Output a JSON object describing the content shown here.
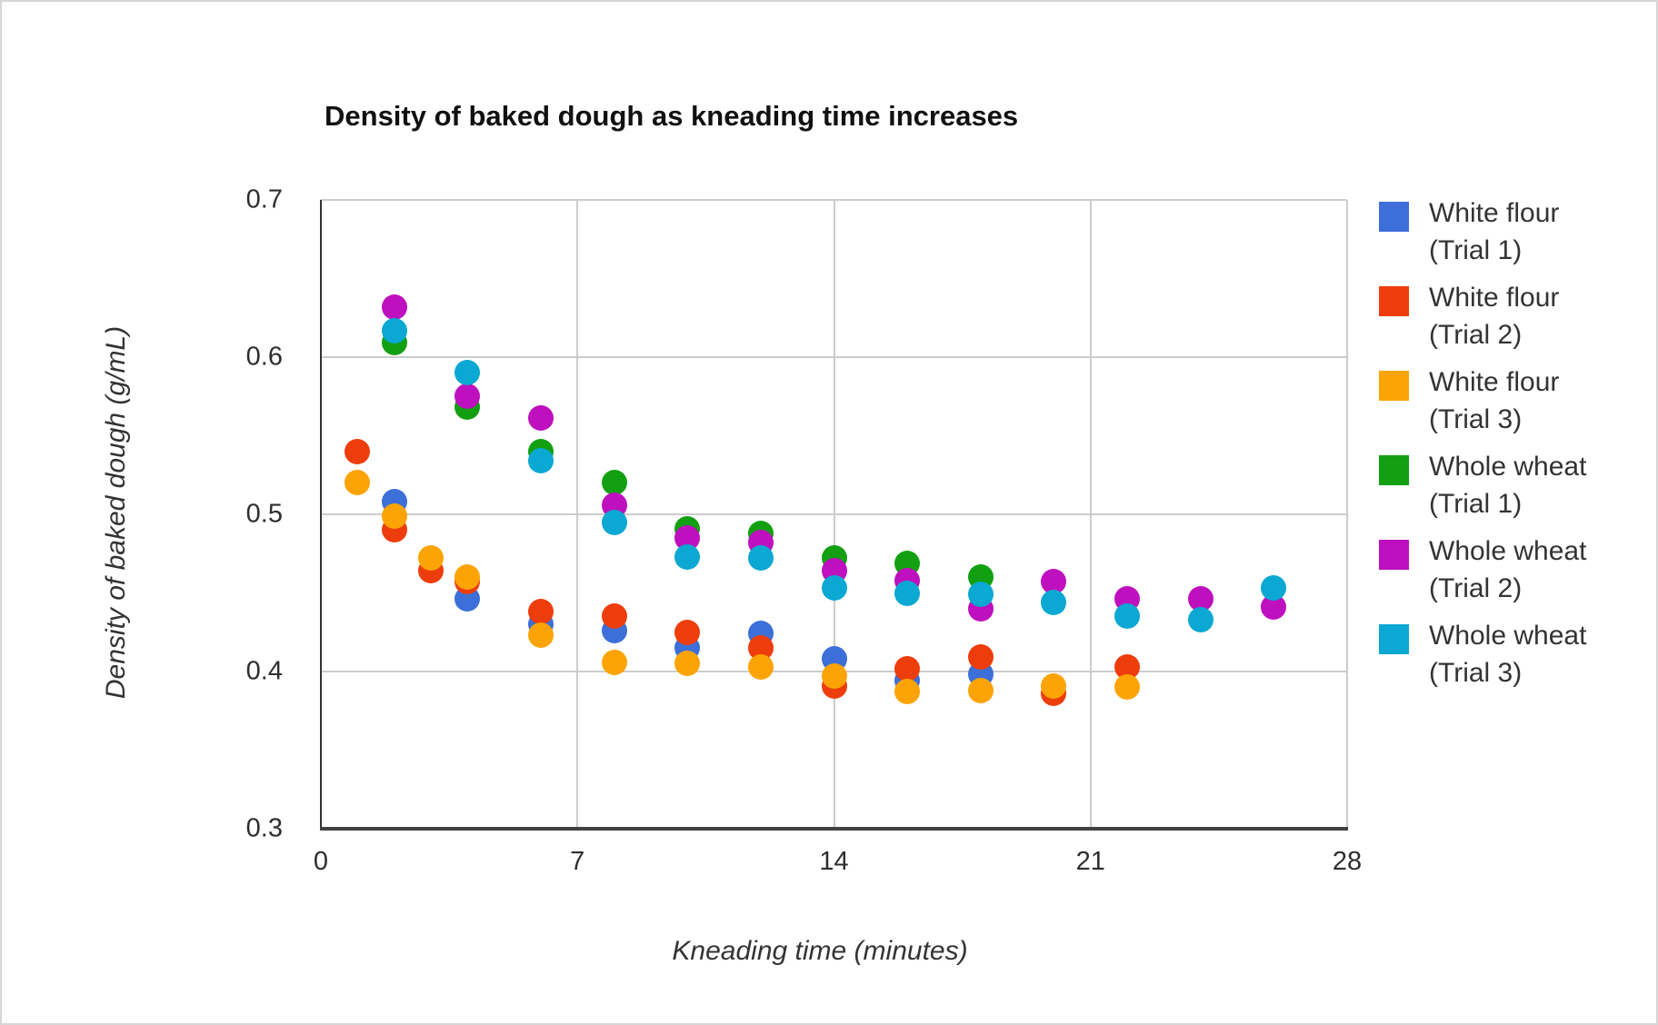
{
  "chart_data": {
    "type": "scatter",
    "title": "Density of baked dough as kneading time increases",
    "xlabel": "Kneading time (minutes)",
    "ylabel": "Density of baked dough (g/mL)",
    "xlim": [
      0,
      28
    ],
    "ylim": [
      0.3,
      0.7
    ],
    "x_ticks": [
      0,
      7,
      14,
      21,
      28
    ],
    "y_ticks": [
      0.3,
      0.4,
      0.5,
      0.6,
      0.7
    ],
    "grid": true,
    "legend_position": "right",
    "series": [
      {
        "name": "White flour (Trial 1)",
        "label_lines": [
          "White flour",
          "(Trial 1)"
        ],
        "color": "#3C6FD8",
        "points": [
          [
            2,
            0.508
          ],
          [
            4,
            0.446
          ],
          [
            6,
            0.43
          ],
          [
            8,
            0.426
          ],
          [
            10,
            0.415
          ],
          [
            12,
            0.424
          ],
          [
            14,
            0.408
          ],
          [
            16,
            0.394
          ],
          [
            18,
            0.398
          ]
        ]
      },
      {
        "name": "White flour (Trial 2)",
        "label_lines": [
          "White flour",
          "(Trial 2)"
        ],
        "color": "#EE3D0C",
        "points": [
          [
            1,
            0.54
          ],
          [
            2,
            0.49
          ],
          [
            3,
            0.464
          ],
          [
            4,
            0.457
          ],
          [
            6,
            0.438
          ],
          [
            8,
            0.435
          ],
          [
            10,
            0.425
          ],
          [
            12,
            0.415
          ],
          [
            14,
            0.391
          ],
          [
            16,
            0.402
          ],
          [
            18,
            0.409
          ],
          [
            20,
            0.386
          ],
          [
            22,
            0.403
          ]
        ]
      },
      {
        "name": "White flour (Trial 3)",
        "label_lines": [
          "White flour",
          "(Trial 3)"
        ],
        "color": "#FCA405",
        "points": [
          [
            1,
            0.52
          ],
          [
            2,
            0.499
          ],
          [
            3,
            0.472
          ],
          [
            4,
            0.46
          ],
          [
            6,
            0.423
          ],
          [
            8,
            0.406
          ],
          [
            10,
            0.405
          ],
          [
            12,
            0.403
          ],
          [
            14,
            0.397
          ],
          [
            16,
            0.387
          ],
          [
            18,
            0.388
          ],
          [
            20,
            0.391
          ],
          [
            22,
            0.39
          ]
        ]
      },
      {
        "name": "Whole wheat (Trial 1)",
        "label_lines": [
          "Whole wheat",
          "(Trial 1)"
        ],
        "color": "#12A012",
        "points": [
          [
            2,
            0.609
          ],
          [
            4,
            0.568
          ],
          [
            6,
            0.54
          ],
          [
            8,
            0.52
          ],
          [
            10,
            0.491
          ],
          [
            12,
            0.488
          ],
          [
            14,
            0.472
          ],
          [
            16,
            0.469
          ],
          [
            18,
            0.46
          ]
        ]
      },
      {
        "name": "Whole wheat (Trial 2)",
        "label_lines": [
          "Whole wheat",
          "(Trial 2)"
        ],
        "color": "#BE10BE",
        "points": [
          [
            2,
            0.632
          ],
          [
            4,
            0.575
          ],
          [
            6,
            0.561
          ],
          [
            8,
            0.506
          ],
          [
            10,
            0.485
          ],
          [
            12,
            0.482
          ],
          [
            14,
            0.464
          ],
          [
            16,
            0.458
          ],
          [
            18,
            0.44
          ],
          [
            20,
            0.457
          ],
          [
            22,
            0.446
          ],
          [
            24,
            0.446
          ],
          [
            26,
            0.441
          ]
        ]
      },
      {
        "name": "Whole wheat (Trial 3)",
        "label_lines": [
          "Whole wheat",
          "(Trial 3)"
        ],
        "color": "#0AA8D2",
        "points": [
          [
            2,
            0.617
          ],
          [
            4,
            0.59
          ],
          [
            6,
            0.534
          ],
          [
            8,
            0.495
          ],
          [
            10,
            0.473
          ],
          [
            12,
            0.472
          ],
          [
            14,
            0.453
          ],
          [
            16,
            0.45
          ],
          [
            18,
            0.449
          ],
          [
            20,
            0.444
          ],
          [
            22,
            0.435
          ],
          [
            24,
            0.433
          ],
          [
            26,
            0.453
          ]
        ]
      }
    ]
  }
}
